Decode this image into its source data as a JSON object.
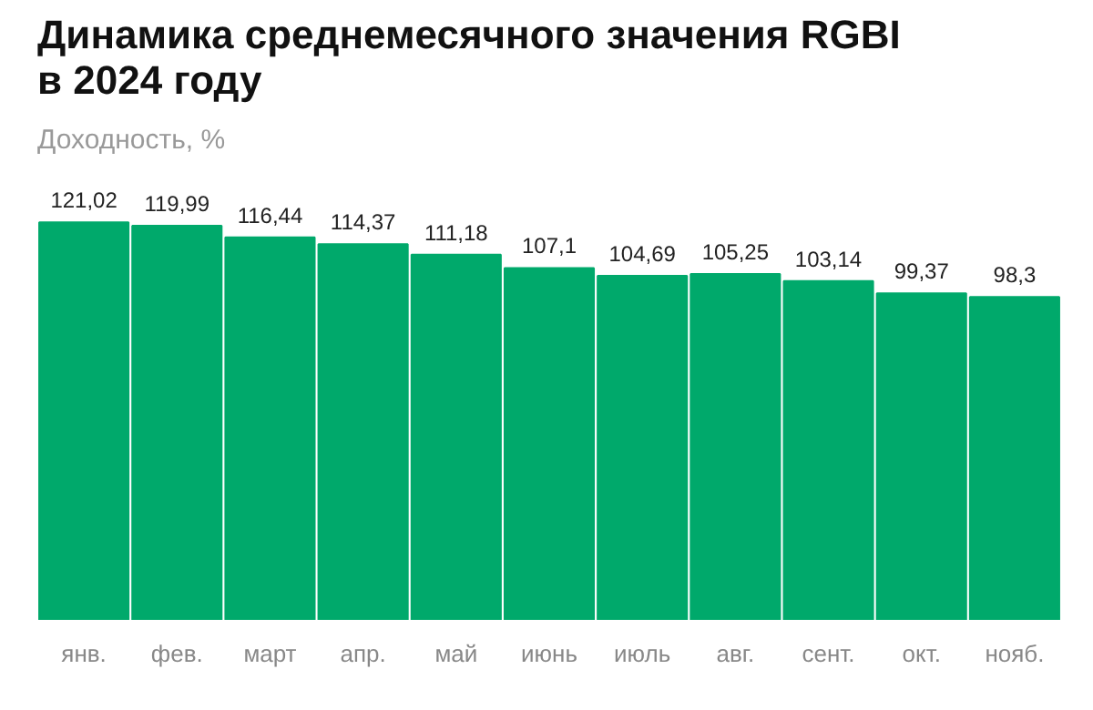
{
  "chart_data": {
    "type": "bar",
    "title": "Динамика среднемесячного значения RGBI\nв 2024 году",
    "subtitle": "Доходность, %",
    "categories": [
      "янв.",
      "фев.",
      "март",
      "апр.",
      "май",
      "июнь",
      "июль",
      "авг.",
      "сент.",
      "окт.",
      "нояб."
    ],
    "values": [
      121.02,
      119.99,
      116.44,
      114.37,
      111.18,
      107.1,
      104.69,
      105.25,
      103.14,
      99.37,
      98.3
    ],
    "value_labels": [
      "121,02",
      "119,99",
      "116,44",
      "114,37",
      "111,18",
      "107,1",
      "104,69",
      "105,25",
      "103,14",
      "99,37",
      "98,3"
    ],
    "color": "#00a96b",
    "grid": false
  }
}
